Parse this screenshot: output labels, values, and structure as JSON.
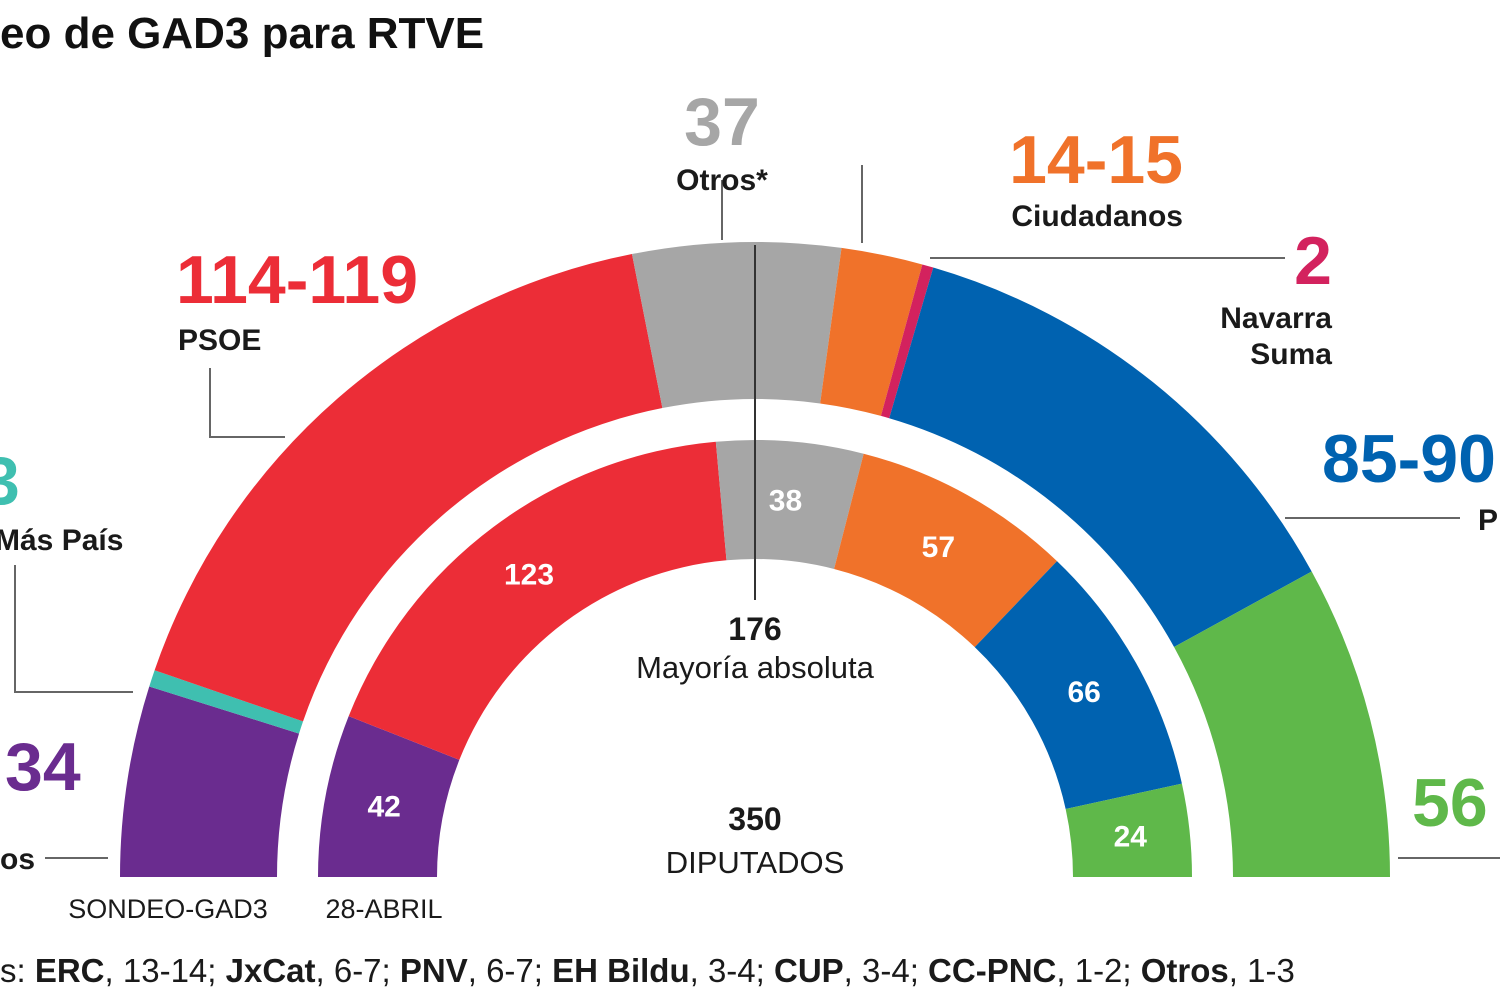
{
  "title": "eo de GAD3 para RTVE",
  "chart_data": [
    {
      "type": "hemicycle",
      "name": "SONDEO-GAD3",
      "total_seats": 350,
      "segments": [
        {
          "party": "os",
          "label": "34",
          "value": 34,
          "color": "#6a2c8f"
        },
        {
          "party": "Más País",
          "label": "3",
          "value": 3,
          "color": "#3fbfb0"
        },
        {
          "party": "PSOE",
          "label": "114-119",
          "value": 116.5,
          "color": "#ec2d37"
        },
        {
          "party": "Otros*",
          "label": "37",
          "value": 37,
          "color": "#a6a6a6"
        },
        {
          "party": "Ciudadanos",
          "label": "14-15",
          "value": 14.5,
          "color": "#f0722a"
        },
        {
          "party": "Navarra Suma",
          "label": "2",
          "value": 2,
          "color": "#d3225e"
        },
        {
          "party": "P",
          "label": "85-90",
          "value": 87.5,
          "color": "#0062b0"
        },
        {
          "party": "",
          "label": "56",
          "value": 56,
          "color": "#5fb84a"
        }
      ]
    },
    {
      "type": "hemicycle",
      "name": "28-ABRIL",
      "total_seats": 350,
      "segments": [
        {
          "label": "42",
          "value": 42,
          "color": "#6a2c8f"
        },
        {
          "label": "123",
          "value": 123,
          "color": "#ec2d37"
        },
        {
          "label": "38",
          "value": 38,
          "color": "#a6a6a6"
        },
        {
          "label": "57",
          "value": 57,
          "color": "#f0722a"
        },
        {
          "label": "66",
          "value": 66,
          "color": "#0062b0"
        },
        {
          "label": "24",
          "value": 24,
          "color": "#5fb84a"
        }
      ]
    }
  ],
  "majority": {
    "number": "176",
    "label": "Mayoría absoluta"
  },
  "total": {
    "number": "350",
    "label": "DIPUTADOS"
  },
  "ring_labels": {
    "outer": "SONDEO-GAD3",
    "inner": "28-ABRIL"
  },
  "footnote": [
    {
      "text": "s: ",
      "bold": false
    },
    {
      "text": "ERC",
      "bold": true
    },
    {
      "text": ", 13-14; ",
      "bold": false
    },
    {
      "text": "JxCat",
      "bold": true
    },
    {
      "text": ", 6-7; ",
      "bold": false
    },
    {
      "text": "PNV",
      "bold": true
    },
    {
      "text": ", 6-7; ",
      "bold": false
    },
    {
      "text": "EH Bildu",
      "bold": true
    },
    {
      "text": ", 3-4; ",
      "bold": false
    },
    {
      "text": "CUP",
      "bold": true
    },
    {
      "text": ", 3-4; ",
      "bold": false
    },
    {
      "text": "CC-PNC",
      "bold": true
    },
    {
      "text": ",  1-2; ",
      "bold": false
    },
    {
      "text": "Otros",
      "bold": true
    },
    {
      "text": ", 1-3",
      "bold": false
    }
  ]
}
